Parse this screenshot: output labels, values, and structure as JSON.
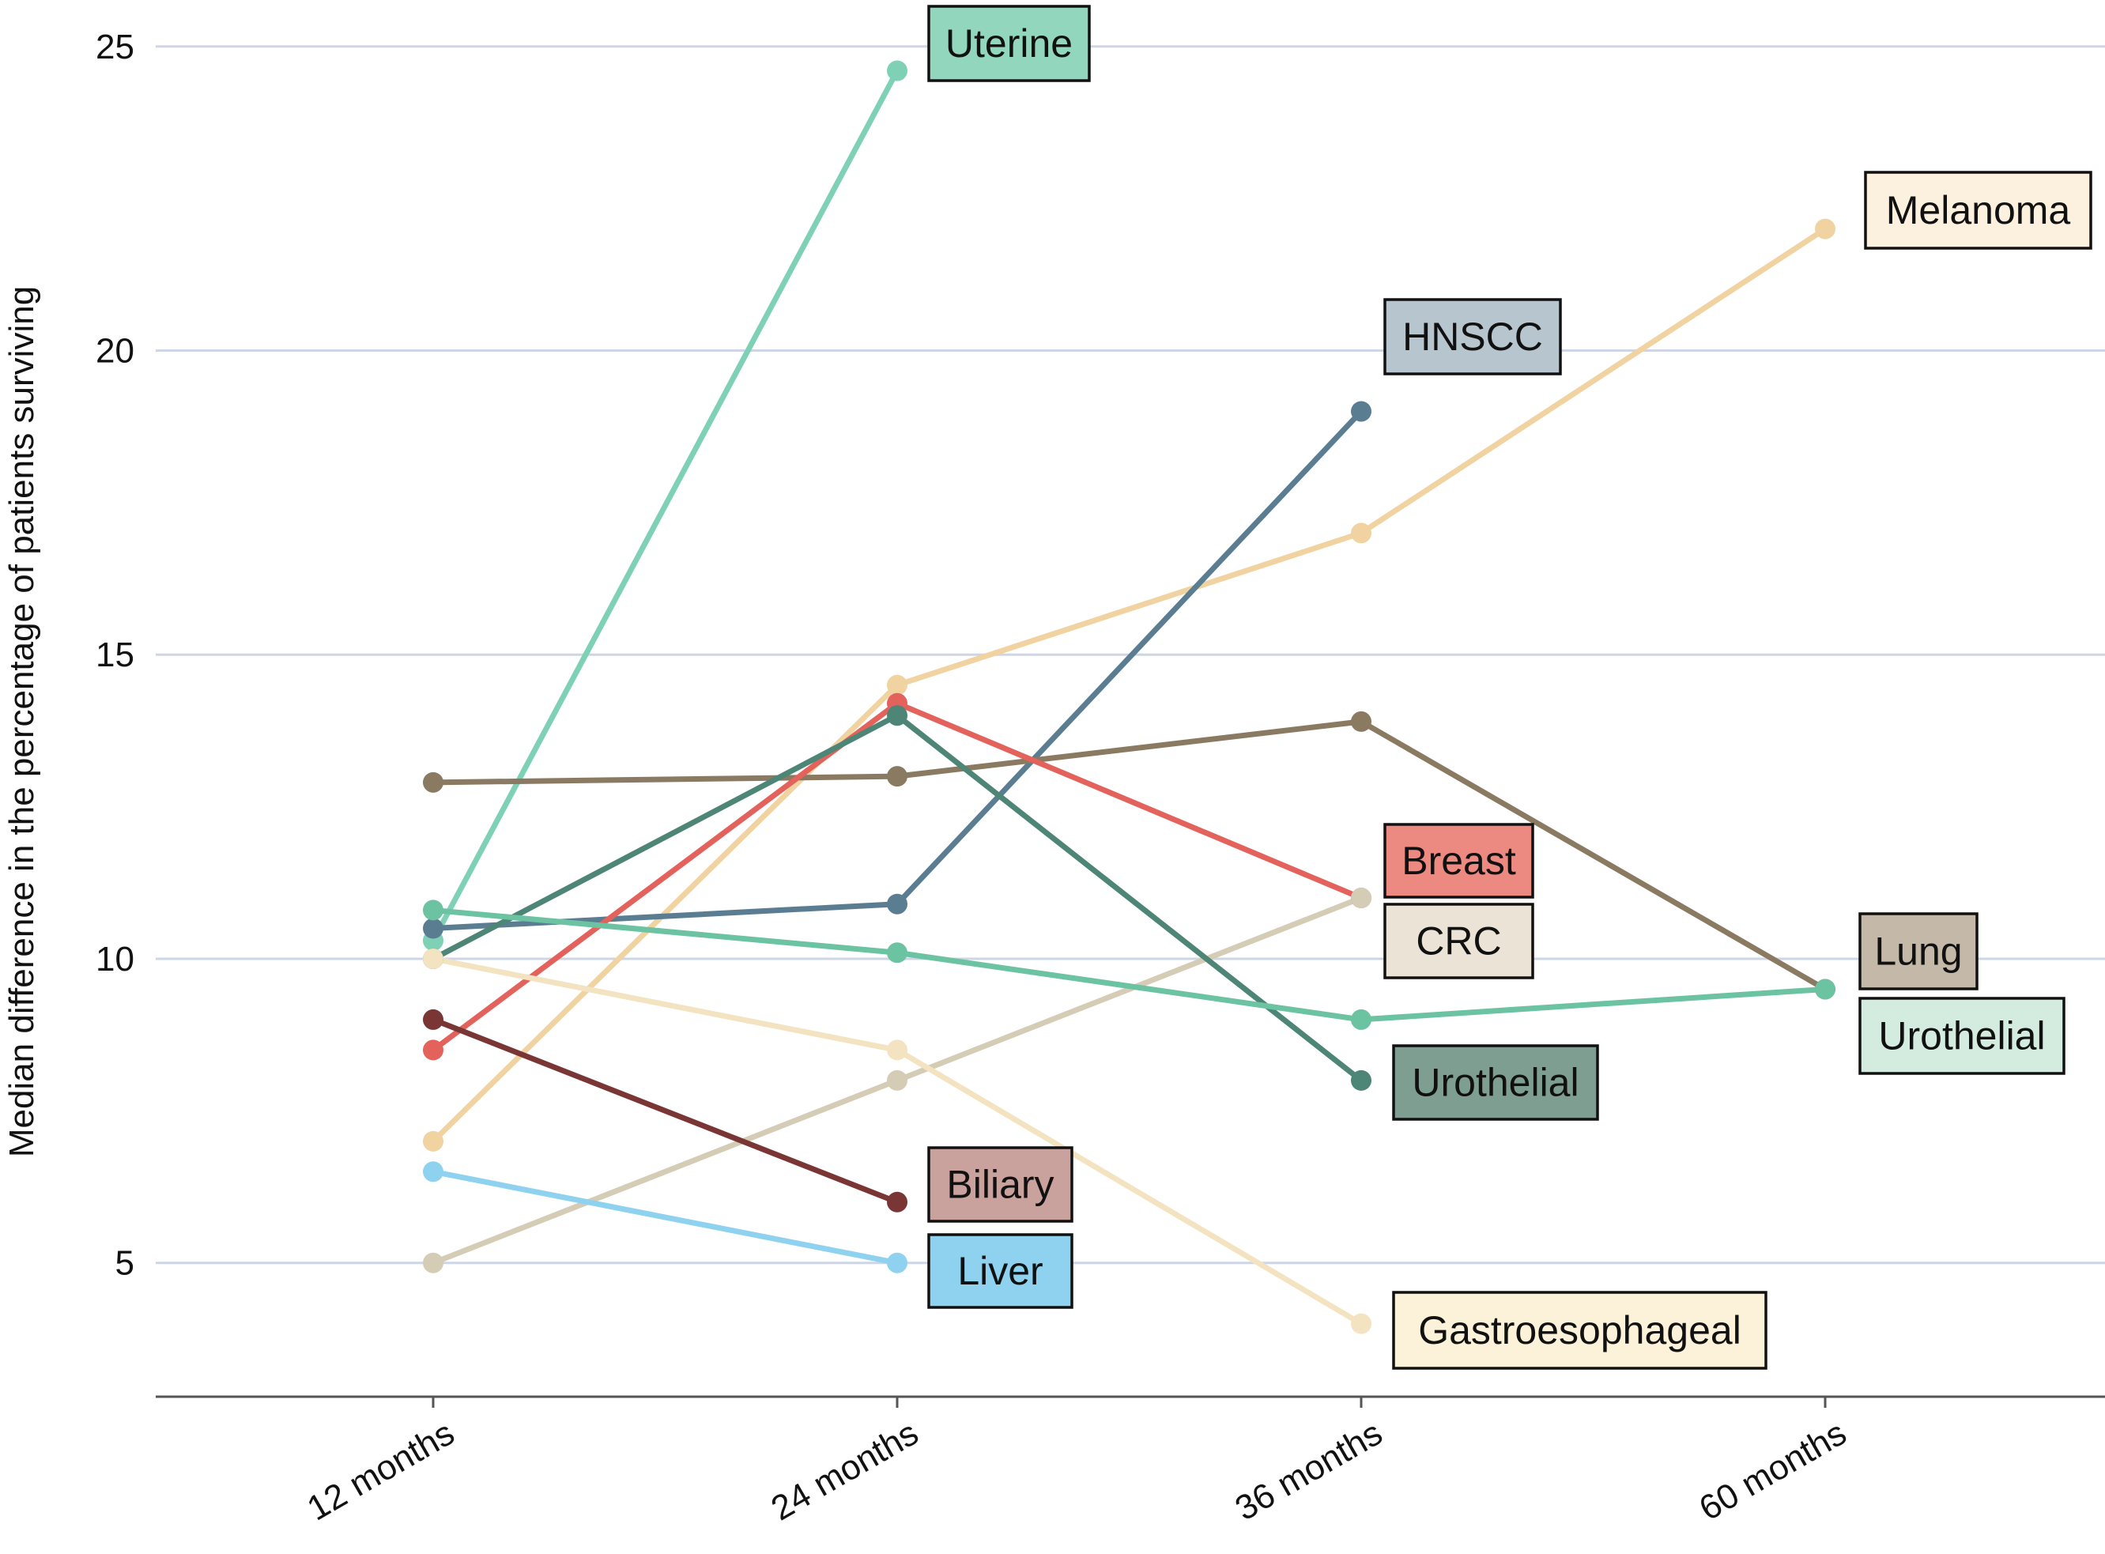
{
  "chart_data": {
    "type": "line",
    "title": "",
    "xlabel": "",
    "ylabel": "Median difference in the percentage of patients surviving",
    "categories": [
      "12 months",
      "24 months",
      "36 months",
      "60 months"
    ],
    "ylim": [
      2.8,
      25.4
    ],
    "yticks": [
      5,
      10,
      15,
      20,
      25
    ],
    "grid": true,
    "legend": "direct labels at series ends",
    "series": [
      {
        "name": "Uterine",
        "color": "#7fd1b6",
        "values": [
          10.3,
          24.6,
          null,
          null
        ]
      },
      {
        "name": "Melanoma",
        "color": "#f0d3a0",
        "values": [
          7.0,
          14.5,
          17.0,
          22.0
        ]
      },
      {
        "name": "HNSCC",
        "color": "#5b7d92",
        "values": [
          10.5,
          10.9,
          19.0,
          null
        ]
      },
      {
        "name": "Lung",
        "color": "#8a7a62",
        "values": [
          12.9,
          13.0,
          13.9,
          9.5
        ]
      },
      {
        "name": "Breast",
        "color": "#e3625c",
        "values": [
          8.5,
          14.2,
          11.0,
          null
        ]
      },
      {
        "name": "CRC",
        "color": "#d5ccb6",
        "values": [
          5.0,
          8.0,
          11.0,
          null
        ]
      },
      {
        "name": "Urothelial",
        "color": "#4d8576",
        "values": [
          10.0,
          14.0,
          8.0,
          null
        ]
      },
      {
        "name": "Urothelial",
        "color": "#6cc3a2",
        "values": [
          10.8,
          10.1,
          9.0,
          9.5
        ]
      },
      {
        "name": "Biliary",
        "color": "#7a3535",
        "values": [
          9.0,
          6.0,
          null,
          null
        ]
      },
      {
        "name": "Liver",
        "color": "#8fd2ef",
        "values": [
          6.5,
          5.0,
          null,
          null
        ]
      },
      {
        "name": "Gastroesophageal",
        "color": "#f3e3c0",
        "values": [
          10.0,
          8.5,
          4.0,
          null
        ]
      }
    ],
    "labels": [
      {
        "text": "Uterine",
        "fill": "#92d6be"
      },
      {
        "text": "Melanoma",
        "fill": "#fcf1de"
      },
      {
        "text": "HNSCC",
        "fill": "#b7c5cf"
      },
      {
        "text": "Breast",
        "fill": "#ec8a82"
      },
      {
        "text": "CRC",
        "fill": "#ebe4d6"
      },
      {
        "text": "Lung",
        "fill": "#c4b9a8"
      },
      {
        "text": "Urothelial",
        "fill": "#d4ecdf"
      },
      {
        "text": "Urothelial",
        "fill": "#7e9e92"
      },
      {
        "text": "Biliary",
        "fill": "#c9a29d"
      },
      {
        "text": "Liver",
        "fill": "#8fd2ef"
      },
      {
        "text": "Gastroesophageal",
        "fill": "#fcf1d9"
      }
    ]
  }
}
